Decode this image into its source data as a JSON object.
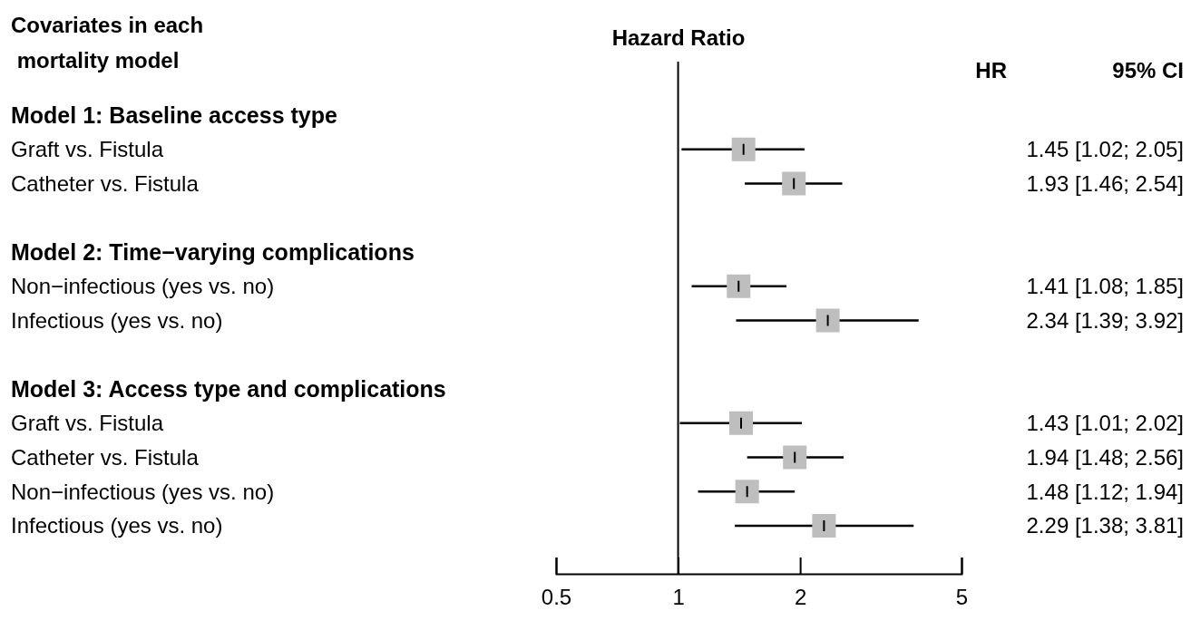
{
  "chart_data": {
    "type": "scatter",
    "orientation": "horizontal",
    "ylabel": "Covariates in each\n mortality model",
    "xlabel": "Hazard Ratio",
    "categories": [
      "Model 1: Baseline access type",
      "Graft vs. Fistula",
      "Catheter vs. Fistula",
      null,
      "Model 2: Time−varying complications",
      "Non−infectious (yes vs. no)",
      "Infectious (yes vs. no)",
      null,
      "Model 3: Access type and complications",
      "Graft vs. Fistula",
      "Catheter vs. Fistula",
      "Non−infectious (yes vs. no)",
      "Infectious (yes vs. no)"
    ],
    "values": [
      null,
      1.45,
      1.93,
      null,
      null,
      1.41,
      2.34,
      null,
      null,
      1.43,
      1.94,
      1.48,
      2.29
    ],
    "errors": [
      null,
      [
        1.02,
        2.05
      ],
      [
        1.46,
        2.54
      ],
      null,
      null,
      [
        1.08,
        1.85
      ],
      [
        1.39,
        3.92
      ],
      null,
      null,
      [
        1.01,
        2.02
      ],
      [
        1.48,
        2.56
      ],
      [
        1.12,
        1.94
      ],
      [
        1.38,
        3.81
      ]
    ],
    "value_labels": [
      null,
      "1.45 [1.02; 2.05]",
      "1.93 [1.46; 2.54]",
      null,
      null,
      "1.41 [1.08; 1.85]",
      "2.34 [1.39; 3.92]",
      null,
      null,
      "1.43 [1.01; 2.02]",
      "1.94 [1.48; 2.56]",
      "1.48 [1.12; 1.94]",
      "2.29 [1.38; 3.81]"
    ],
    "color": "#bebebe",
    "marker": "square",
    "log": "x",
    "xlim": [
      0.5,
      5
    ],
    "xticks": [
      0.5,
      1,
      2,
      5
    ],
    "ref_lines": [
      {
        "axis": "x",
        "value": 1
      }
    ],
    "annotations": [
      "HR",
      "95% CI"
    ],
    "grid": false
  }
}
